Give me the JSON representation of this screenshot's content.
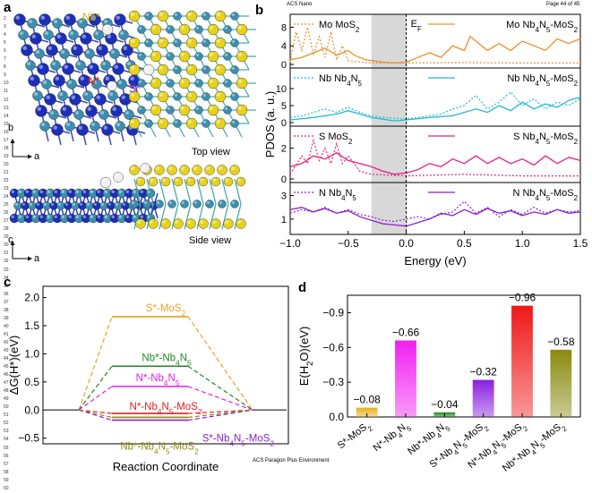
{
  "page_header": {
    "journal": "ACS Nano",
    "page": "Page 44 of 45"
  },
  "page_footer": "ACS Paragon Plus Environment",
  "line_numbers": [
    "1",
    "2",
    "3",
    "4",
    "5",
    "6",
    "7",
    "8",
    "9",
    "10",
    "11",
    "12",
    "13",
    "14",
    "15",
    "16",
    "17",
    "18",
    "19",
    "20",
    "21",
    "22",
    "23",
    "24",
    "25",
    "26",
    "27",
    "28",
    "29",
    "30",
    "31",
    "32",
    "33",
    "34",
    "35",
    "36",
    "37",
    "38",
    "39",
    "40",
    "41",
    "42",
    "43",
    "44",
    "45",
    "46",
    "47",
    "48",
    "49",
    "50",
    "51",
    "52",
    "53",
    "54",
    "55",
    "56",
    "57",
    "58",
    "59",
    "60"
  ],
  "panel_a": {
    "letter": "a",
    "top_view_label": "Top view",
    "side_view_label": "Side view",
    "site_labels": {
      "nb": "Nb*",
      "n": "N*",
      "s": "S*"
    },
    "axes_top": {
      "vertical": "b",
      "horizontal": "a"
    },
    "axes_side": {
      "vertical": "c",
      "horizontal": "a"
    },
    "colors": {
      "nb": "#1c2fb8",
      "n_teal": "#3b8fb0",
      "s": "#e6d21c",
      "h": "#f0f0f0",
      "bond_mo": "#3da6a6"
    }
  },
  "panel_b": {
    "letter": "b",
    "chart_data": {
      "type": "line",
      "title": "",
      "xlabel": "Energy (eV)",
      "ylabel": "PDOS (a. u.)",
      "xlim": [
        -1.0,
        1.5
      ],
      "xticks": [
        "-1.0",
        "-0.5",
        "0.0",
        "0.5",
        "1.0",
        "1.5"
      ],
      "shaded_region": [
        -0.3,
        0.0
      ],
      "fermi_label": "E",
      "fermi_sub": "F",
      "subplots": [
        {
          "yticks": [
            "0",
            "4",
            "8"
          ],
          "ylim": [
            0,
            10
          ],
          "color": "#e8902a",
          "legend_dotted": {
            "main": "Mo MoS",
            "sub": "2"
          },
          "legend_solid": {
            "main": "Mo Nb",
            "sub1": "4",
            "mid": "N",
            "sub2": "5",
            "end": "-MoS",
            "sub3": "2"
          },
          "series_dotted": [
            [
              -1.0,
              0.5
            ],
            [
              -0.95,
              7.0
            ],
            [
              -0.9,
              3.0
            ],
            [
              -0.85,
              8.0
            ],
            [
              -0.8,
              2.0
            ],
            [
              -0.75,
              6.0
            ],
            [
              -0.7,
              1.5
            ],
            [
              -0.65,
              7.0
            ],
            [
              -0.6,
              1.0
            ],
            [
              -0.55,
              4.0
            ],
            [
              -0.5,
              0.8
            ],
            [
              -0.4,
              0.5
            ],
            [
              -0.3,
              0.3
            ],
            [
              0.0,
              0.3
            ],
            [
              0.5,
              0.4
            ],
            [
              1.0,
              0.3
            ],
            [
              1.5,
              0.3
            ]
          ],
          "series_solid": [
            [
              -1.0,
              1.0
            ],
            [
              -0.9,
              1.5
            ],
            [
              -0.8,
              2.5
            ],
            [
              -0.7,
              3.5
            ],
            [
              -0.6,
              2.0
            ],
            [
              -0.5,
              3.0
            ],
            [
              -0.45,
              2.0
            ],
            [
              -0.35,
              1.0
            ],
            [
              -0.2,
              0.5
            ],
            [
              -0.1,
              0.3
            ],
            [
              0.0,
              0.5
            ],
            [
              0.1,
              1.5
            ],
            [
              0.2,
              2.5
            ],
            [
              0.3,
              1.5
            ],
            [
              0.4,
              4.0
            ],
            [
              0.5,
              3.0
            ],
            [
              0.55,
              6.0
            ],
            [
              0.6,
              5.0
            ],
            [
              0.7,
              3.0
            ],
            [
              0.8,
              4.5
            ],
            [
              0.9,
              3.0
            ],
            [
              1.0,
              5.0
            ],
            [
              1.1,
              4.0
            ],
            [
              1.2,
              3.0
            ],
            [
              1.3,
              5.5
            ],
            [
              1.4,
              4.5
            ],
            [
              1.5,
              5.5
            ]
          ]
        },
        {
          "yticks": [
            "0",
            "5",
            "10"
          ],
          "ylim": [
            0,
            15
          ],
          "color": "#22b8d8",
          "legend_dotted": {
            "main": "Nb Nb",
            "sub1": "4",
            "mid": "N",
            "sub2": "5"
          },
          "legend_solid": {
            "main": "Nb Nb",
            "sub1": "4",
            "mid": "N",
            "sub2": "5",
            "end": "-MoS",
            "sub3": "2"
          },
          "series_dotted": [
            [
              -1.0,
              1.5
            ],
            [
              -0.9,
              2.0
            ],
            [
              -0.8,
              3.0
            ],
            [
              -0.7,
              4.0
            ],
            [
              -0.6,
              3.0
            ],
            [
              -0.5,
              4.5
            ],
            [
              -0.4,
              3.0
            ],
            [
              -0.3,
              2.0
            ],
            [
              -0.2,
              1.5
            ],
            [
              0.0,
              1.0
            ],
            [
              0.1,
              1.5
            ],
            [
              0.2,
              2.0
            ],
            [
              0.3,
              2.5
            ],
            [
              0.4,
              4.0
            ],
            [
              0.5,
              5.0
            ],
            [
              0.6,
              8.0
            ],
            [
              0.7,
              4.0
            ],
            [
              0.8,
              6.0
            ],
            [
              0.9,
              9.0
            ],
            [
              1.0,
              5.0
            ],
            [
              1.1,
              7.0
            ],
            [
              1.2,
              4.0
            ],
            [
              1.3,
              6.0
            ],
            [
              1.4,
              5.0
            ],
            [
              1.5,
              7.0
            ]
          ],
          "series_solid": [
            [
              -1.0,
              0.8
            ],
            [
              -0.8,
              1.5
            ],
            [
              -0.6,
              2.5
            ],
            [
              -0.5,
              3.5
            ],
            [
              -0.4,
              2.5
            ],
            [
              -0.3,
              1.5
            ],
            [
              -0.2,
              1.0
            ],
            [
              -0.1,
              0.5
            ],
            [
              0.0,
              0.8
            ],
            [
              0.2,
              1.5
            ],
            [
              0.4,
              2.0
            ],
            [
              0.5,
              3.0
            ],
            [
              0.6,
              4.0
            ],
            [
              0.7,
              3.0
            ],
            [
              0.8,
              5.0
            ],
            [
              0.9,
              3.5
            ],
            [
              1.0,
              6.0
            ],
            [
              1.1,
              4.0
            ],
            [
              1.2,
              5.5
            ],
            [
              1.3,
              4.5
            ],
            [
              1.4,
              6.5
            ],
            [
              1.5,
              7.5
            ]
          ]
        },
        {
          "yticks": [
            "0",
            "2"
          ],
          "ylim": [
            0,
            3.2
          ],
          "color": "#e8207c",
          "legend_dotted": {
            "main": "S MoS",
            "sub": "2"
          },
          "legend_solid": {
            "main": "S Nb",
            "sub1": "4",
            "mid": "N",
            "sub2": "5",
            "end": "-MoS",
            "sub3": "2"
          },
          "series_dotted": [
            [
              -1.0,
              0.3
            ],
            [
              -0.9,
              1.5
            ],
            [
              -0.85,
              1.0
            ],
            [
              -0.8,
              2.5
            ],
            [
              -0.75,
              1.2
            ],
            [
              -0.7,
              2.0
            ],
            [
              -0.65,
              1.0
            ],
            [
              -0.6,
              2.3
            ],
            [
              -0.55,
              1.0
            ],
            [
              -0.5,
              1.5
            ],
            [
              -0.4,
              0.5
            ],
            [
              -0.3,
              0.3
            ],
            [
              0.0,
              0.2
            ],
            [
              0.5,
              0.3
            ],
            [
              1.0,
              0.2
            ],
            [
              1.5,
              0.2
            ]
          ],
          "series_solid": [
            [
              -1.0,
              0.8
            ],
            [
              -0.9,
              1.0
            ],
            [
              -0.8,
              1.5
            ],
            [
              -0.7,
              1.3
            ],
            [
              -0.6,
              1.7
            ],
            [
              -0.5,
              1.2
            ],
            [
              -0.4,
              1.0
            ],
            [
              -0.3,
              0.8
            ],
            [
              -0.2,
              0.5
            ],
            [
              -0.1,
              0.3
            ],
            [
              0.0,
              0.4
            ],
            [
              0.1,
              0.6
            ],
            [
              0.2,
              1.0
            ],
            [
              0.3,
              0.8
            ],
            [
              0.4,
              1.3
            ],
            [
              0.5,
              1.0
            ],
            [
              0.6,
              1.5
            ],
            [
              0.7,
              1.0
            ],
            [
              0.8,
              1.4
            ],
            [
              0.9,
              1.0
            ],
            [
              1.0,
              1.3
            ],
            [
              1.1,
              0.9
            ],
            [
              1.2,
              1.5
            ],
            [
              1.3,
              1.0
            ],
            [
              1.4,
              1.4
            ],
            [
              1.5,
              1.2
            ]
          ]
        },
        {
          "yticks": [
            "1",
            "3"
          ],
          "ylim": [
            0,
            3.8
          ],
          "color": "#8a22c8",
          "legend_dotted": {
            "main": "N Nb",
            "sub1": "4",
            "mid": "N",
            "sub2": "5"
          },
          "legend_solid": {
            "main": "N Nb",
            "sub1": "4",
            "mid": "N",
            "sub2": "5",
            "end": "-MoS",
            "sub3": "2"
          },
          "series_dotted": [
            [
              -1.0,
              1.5
            ],
            [
              -0.9,
              1.8
            ],
            [
              -0.8,
              1.6
            ],
            [
              -0.7,
              2.0
            ],
            [
              -0.6,
              1.5
            ],
            [
              -0.5,
              1.8
            ],
            [
              -0.4,
              1.4
            ],
            [
              -0.3,
              1.2
            ],
            [
              -0.2,
              0.9
            ],
            [
              -0.1,
              0.8
            ],
            [
              0.0,
              1.0
            ],
            [
              0.1,
              1.2
            ],
            [
              0.2,
              1.0
            ],
            [
              0.3,
              1.4
            ],
            [
              0.4,
              1.6
            ],
            [
              0.5,
              2.5
            ],
            [
              0.6,
              1.5
            ],
            [
              0.7,
              2.0
            ],
            [
              0.8,
              1.2
            ],
            [
              0.9,
              1.8
            ],
            [
              1.0,
              1.4
            ],
            [
              1.1,
              2.0
            ],
            [
              1.2,
              1.5
            ],
            [
              1.3,
              1.8
            ],
            [
              1.4,
              1.6
            ],
            [
              1.5,
              1.7
            ]
          ],
          "series_solid": [
            [
              -1.0,
              1.8
            ],
            [
              -0.9,
              2.0
            ],
            [
              -0.8,
              1.6
            ],
            [
              -0.7,
              1.9
            ],
            [
              -0.6,
              1.5
            ],
            [
              -0.5,
              1.7
            ],
            [
              -0.4,
              1.2
            ],
            [
              -0.3,
              0.9
            ],
            [
              -0.2,
              0.6
            ],
            [
              -0.1,
              0.5
            ],
            [
              0.0,
              0.4
            ],
            [
              0.1,
              0.7
            ],
            [
              0.2,
              1.0
            ],
            [
              0.3,
              1.5
            ],
            [
              0.4,
              1.3
            ],
            [
              0.5,
              1.8
            ],
            [
              0.6,
              1.4
            ],
            [
              0.7,
              1.9
            ],
            [
              0.8,
              1.5
            ],
            [
              0.9,
              1.7
            ],
            [
              1.0,
              1.3
            ],
            [
              1.1,
              1.6
            ],
            [
              1.2,
              1.4
            ],
            [
              1.3,
              1.8
            ],
            [
              1.4,
              1.5
            ],
            [
              1.5,
              1.6
            ]
          ]
        }
      ]
    }
  },
  "panel_c": {
    "letter": "c",
    "chart_data": {
      "type": "line",
      "title": "",
      "xlabel": "Reaction Coordinate",
      "ylabel": "ΔG(H*)(eV)",
      "ylim": [
        -0.6,
        2.2
      ],
      "yticks": [
        "-0.5",
        "0.0",
        "0.5",
        "1.0",
        "1.5",
        "2.0"
      ],
      "series": [
        {
          "name": "S*-MoS",
          "sub": "2",
          "value": 1.66,
          "color": "#e8a020"
        },
        {
          "name": "Nb*-Nb",
          "sub": "4",
          "mid": "N",
          "sub2": "5",
          "value": 0.78,
          "color": "#1e8a1e"
        },
        {
          "name": "N*-Nb",
          "sub": "4",
          "mid": "N",
          "sub2": "5",
          "value": 0.42,
          "color": "#e020e0"
        },
        {
          "name": "N*-Nb",
          "sub": "4",
          "mid": "N",
          "sub2": "5",
          "end": "-MoS",
          "sub3": "2",
          "value": -0.06,
          "color": "#e02020"
        },
        {
          "name": "S*-Nb",
          "sub": "4",
          "mid": "N",
          "sub2": "5",
          "end": "-MoS",
          "sub3": "2",
          "value": -0.18,
          "color": "#8a20c8"
        },
        {
          "name": "Nb*-Nb",
          "sub": "4",
          "mid": "N",
          "sub2": "5",
          "end": "-MoS",
          "sub3": "2",
          "value": -0.13,
          "color": "#8a8a10"
        }
      ]
    }
  },
  "panel_d": {
    "letter": "d",
    "chart_data": {
      "type": "bar",
      "title": "",
      "xlabel": "",
      "ylabel_main": "E",
      "ylabel_paren": "(H",
      "ylabel_sub": "2",
      "ylabel_end": "O)(eV)",
      "ylim": [
        0,
        -1.05
      ],
      "yticks": [
        "0.0",
        "-0.3",
        "-0.6",
        "-0.9"
      ],
      "categories": [
        {
          "main": "S*-MoS",
          "sub": "2"
        },
        {
          "main": "N*-Nb",
          "sub": "4",
          "mid": "N",
          "sub2": "5"
        },
        {
          "main": "Nb*-Nb",
          "sub": "4",
          "mid": "N",
          "sub2": "5"
        },
        {
          "main": "S*-Nb",
          "sub": "4",
          "mid": "N",
          "sub2": "5",
          "end": "-MoS",
          "sub3": "2"
        },
        {
          "main": "N*-Nb",
          "sub": "4",
          "mid": "N",
          "sub2": "5",
          "end": "-MoS",
          "sub3": "2"
        },
        {
          "main": "Nb*-Nb",
          "sub": "4",
          "mid": "N",
          "sub2": "5",
          "end": "-MoS",
          "sub3": "2"
        }
      ],
      "values": [
        -0.08,
        -0.66,
        -0.04,
        -0.32,
        -0.96,
        -0.58
      ],
      "labels": [
        "−0.08",
        "−0.66",
        "−0.04",
        "−0.32",
        "−0.96",
        "−0.58"
      ],
      "colors": [
        "#e8b020",
        "#f020f0",
        "#1e8a1e",
        "#8a20e0",
        "#f01818",
        "#8a8a10"
      ]
    }
  }
}
